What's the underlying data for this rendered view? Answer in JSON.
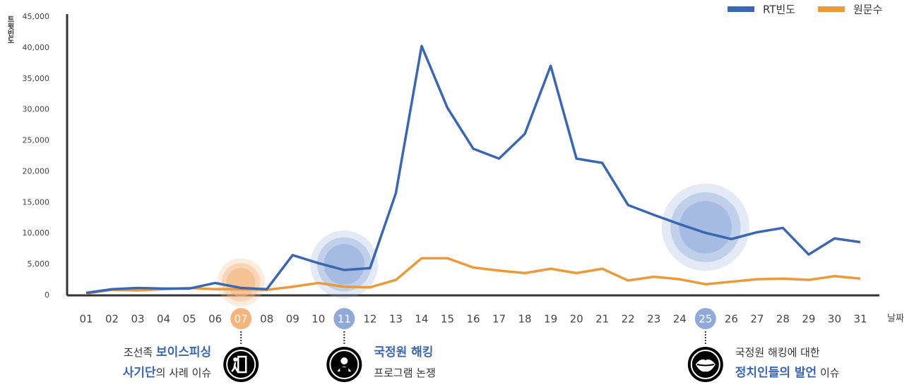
{
  "chart_data": {
    "type": "line",
    "y_label": "트윗빈도",
    "x_label": "날짜",
    "categories": [
      "01",
      "02",
      "03",
      "04",
      "05",
      "06",
      "07",
      "08",
      "09",
      "10",
      "11",
      "12",
      "13",
      "14",
      "15",
      "16",
      "17",
      "18",
      "19",
      "20",
      "21",
      "22",
      "23",
      "24",
      "25",
      "26",
      "27",
      "28",
      "29",
      "30",
      "31"
    ],
    "series": [
      {
        "name": "RT빈도",
        "color": "#3a67b0",
        "values": [
          400,
          1000,
          1200,
          1100,
          1100,
          2000,
          1200,
          1000,
          6500,
          5200,
          4100,
          4400,
          16500,
          40300,
          30300,
          23700,
          22100,
          26100,
          37100,
          22100,
          21400,
          14600,
          13000,
          11500,
          10100,
          9100,
          10200,
          10900,
          6600,
          9200,
          8600
        ]
      },
      {
        "name": "원문수",
        "color": "#eb9a3a",
        "values": [
          300,
          900,
          800,
          1000,
          1200,
          1000,
          1000,
          900,
          1400,
          2000,
          1400,
          1300,
          2500,
          6000,
          6000,
          4500,
          4000,
          3600,
          4300,
          3600,
          4300,
          2400,
          3000,
          2600,
          1800,
          2200,
          2600,
          2700,
          2500,
          3100,
          2700
        ]
      }
    ],
    "ylim": [
      0,
      45000
    ],
    "yticks": [
      0,
      {
        "value": 5000,
        "label": "5,000"
      },
      {
        "value": 10000,
        "label": "10,000"
      },
      {
        "value": 15000,
        "label": "15,000"
      },
      {
        "value": 20000,
        "label": "20,000"
      },
      {
        "value": 25000,
        "label": "25,000"
      },
      {
        "value": 30000,
        "label": "30,000"
      },
      {
        "value": 35000,
        "label": "35,000"
      },
      {
        "value": 40000,
        "label": "40,000"
      },
      {
        "value": 45000,
        "label": "45,000"
      }
    ],
    "legend": "top-right",
    "annotations": [
      {
        "category_index": 6,
        "color": "#f3b57b",
        "align": "right",
        "lines": [
          [
            {
              "text": "조선족 ",
              "emphasis": false
            },
            {
              "text": "보이스피싱",
              "emphasis": true
            }
          ],
          [
            {
              "text": "사기단",
              "emphasis": true
            },
            {
              "text": "의 사례 이슈",
              "emphasis": false
            }
          ]
        ]
      },
      {
        "category_index": 10,
        "color": "#8fa9d9",
        "align": "left",
        "lines": [
          [
            {
              "text": "국정원 해킹",
              "emphasis": true
            }
          ],
          [
            {
              "text": "프로그램 논쟁",
              "emphasis": false
            }
          ]
        ]
      },
      {
        "category_index": 24,
        "color": "#8fa9d9",
        "align": "left",
        "lines": [
          [
            {
              "text": "국정원 해킹에 대한",
              "emphasis": false
            }
          ],
          [
            {
              "text": "정치인들의 발언",
              "emphasis": true
            },
            {
              "text": " 이슈",
              "emphasis": false
            }
          ]
        ]
      }
    ]
  }
}
